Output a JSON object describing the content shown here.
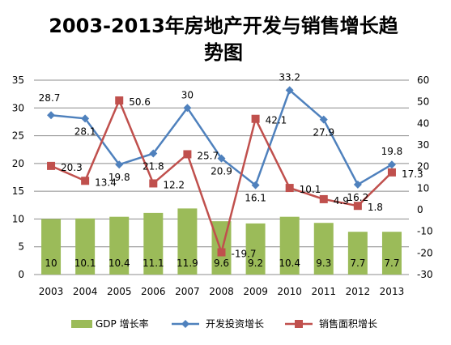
{
  "chart_data": {
    "type": "bar",
    "title_lines": [
      "2003-2013年房地产开发与销售增长趋",
      "势图"
    ],
    "categories": [
      "2003",
      "2004",
      "2005",
      "2006",
      "2007",
      "2008",
      "2009",
      "2010",
      "2011",
      "2012",
      "2013"
    ],
    "left_axis": {
      "min": 0,
      "max": 35,
      "step": 5
    },
    "right_axis": {
      "min": -30,
      "max": 60,
      "step": 10
    },
    "grid": true,
    "legend_position": "bottom",
    "series": [
      {
        "name": "GDP 增长率",
        "type": "bar",
        "axis": "left",
        "color": "#9bbb59",
        "values": [
          10,
          10.1,
          10.4,
          11.1,
          11.9,
          9.6,
          9.2,
          10.4,
          9.3,
          7.7,
          7.7
        ]
      },
      {
        "name": "开发投资增长",
        "type": "line",
        "axis": "left",
        "color": "#4f81bd",
        "marker": "diamond",
        "values": [
          28.7,
          28.1,
          19.8,
          21.8,
          30,
          20.9,
          16.1,
          33.2,
          27.9,
          16.2,
          19.8
        ]
      },
      {
        "name": "销售面积增长",
        "type": "line",
        "axis": "right",
        "color": "#c0504d",
        "marker": "square",
        "values": [
          20.3,
          13.4,
          50.6,
          12.2,
          25.7,
          -19.7,
          42.1,
          10.1,
          4.9,
          1.8,
          17.3
        ]
      }
    ]
  }
}
